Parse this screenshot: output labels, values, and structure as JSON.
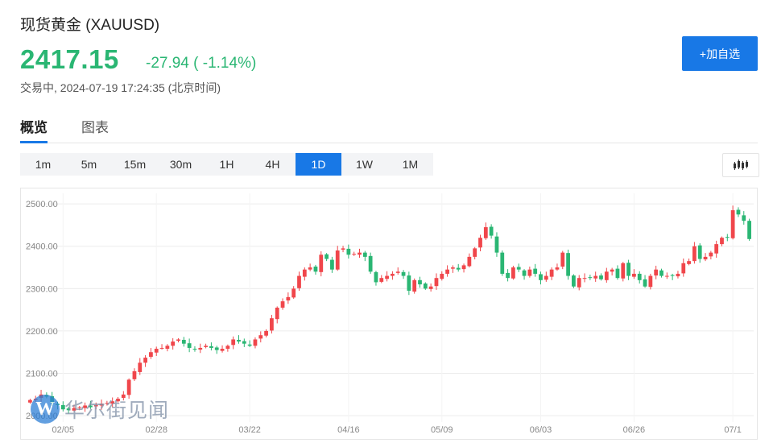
{
  "header": {
    "title": "现货黄金 (XAUUSD)",
    "price": "2417.15",
    "change": "-27.94 ( -1.14%)",
    "status": "交易中, 2024-07-19 17:24:35 (北京时间)",
    "add_button": "+加自选"
  },
  "tabs": [
    {
      "label": "概览",
      "active": true
    },
    {
      "label": "图表",
      "active": false
    }
  ],
  "periods": [
    {
      "label": "1m",
      "active": false
    },
    {
      "label": "5m",
      "active": false
    },
    {
      "label": "15m",
      "active": false
    },
    {
      "label": "30m",
      "active": false
    },
    {
      "label": "1H",
      "active": false
    },
    {
      "label": "4H",
      "active": false
    },
    {
      "label": "1D",
      "active": true
    },
    {
      "label": "1W",
      "active": false
    },
    {
      "label": "1M",
      "active": false
    }
  ],
  "icons": {
    "chart_type": "candlestick-icon"
  },
  "colors": {
    "up": "#f0464b",
    "down": "#2ab673",
    "accent": "#1878e6"
  },
  "watermark": {
    "logo_letter": "W",
    "text": "华尔街见闻"
  },
  "chart_data": {
    "type": "candlestick",
    "y_ticks": [
      "2000.00",
      "2100.00",
      "2200.00",
      "2300.00",
      "2400.00",
      "2500.00"
    ],
    "ylim": [
      1985,
      2525
    ],
    "x_ticks": [
      "02/05",
      "02/28",
      "03/22",
      "04/16",
      "05/09",
      "06/03",
      "06/26",
      "07/1"
    ],
    "date_range": [
      "2024-01-30",
      "2024-07-19"
    ],
    "grid": true,
    "close": [
      2037,
      2040,
      2050,
      2045,
      2030,
      2025,
      2015,
      2013,
      2018,
      2020,
      2024,
      2020,
      2025,
      2028,
      2030,
      2034,
      2040,
      2050,
      2085,
      2105,
      2125,
      2137,
      2150,
      2158,
      2160,
      2165,
      2175,
      2180,
      2170,
      2160,
      2156,
      2160,
      2165,
      2160,
      2155,
      2158,
      2165,
      2180,
      2175,
      2170,
      2165,
      2180,
      2190,
      2200,
      2230,
      2255,
      2270,
      2280,
      2300,
      2330,
      2345,
      2350,
      2340,
      2380,
      2370,
      2345,
      2390,
      2395,
      2380,
      2382,
      2385,
      2375,
      2340,
      2315,
      2325,
      2330,
      2335,
      2340,
      2330,
      2295,
      2320,
      2310,
      2300,
      2305,
      2325,
      2335,
      2345,
      2350,
      2345,
      2355,
      2375,
      2395,
      2420,
      2445,
      2425,
      2385,
      2335,
      2325,
      2350,
      2345,
      2330,
      2345,
      2335,
      2320,
      2330,
      2345,
      2350,
      2385,
      2330,
      2305,
      2325,
      2325,
      2325,
      2330,
      2322,
      2340,
      2345,
      2325,
      2360,
      2330,
      2335,
      2320,
      2305,
      2330,
      2345,
      2330,
      2330,
      2330,
      2335,
      2360,
      2365,
      2400,
      2370,
      2375,
      2385,
      2405,
      2420,
      2420,
      2485,
      2475,
      2460,
      2417
    ]
  }
}
